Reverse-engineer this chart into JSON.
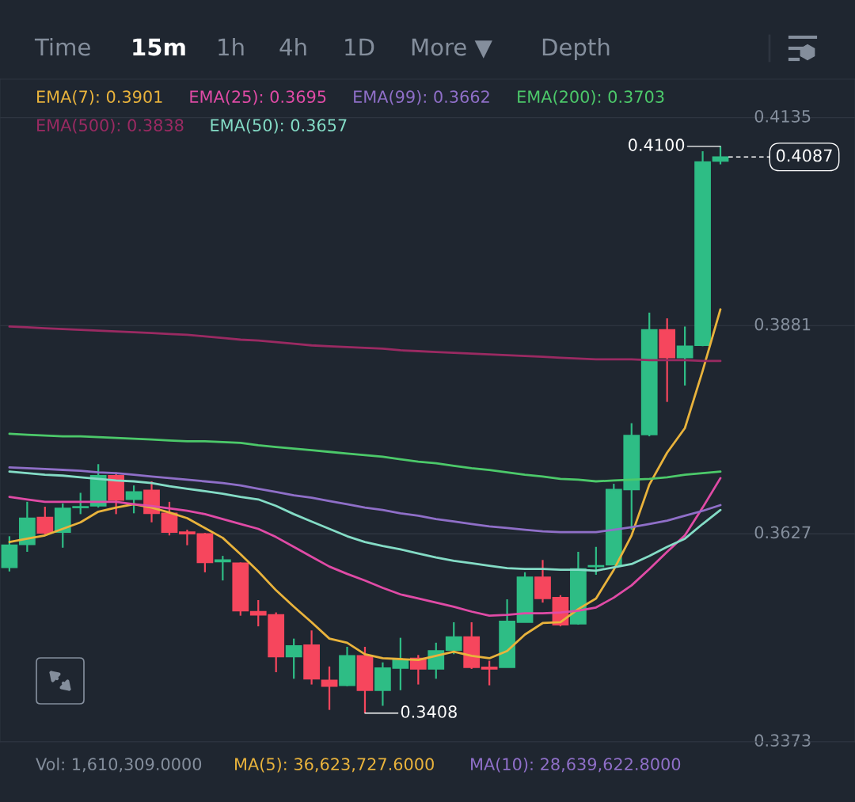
{
  "chart_data": [
    {
      "type": "candlestick",
      "categories": [
        null,
        null,
        null,
        null,
        null,
        null,
        null,
        null,
        null,
        null,
        null,
        null,
        null,
        null,
        null,
        null,
        null,
        null,
        null,
        null,
        null,
        null,
        null,
        null,
        null,
        null,
        null,
        null,
        null,
        null,
        null,
        null,
        null,
        null,
        null,
        null,
        null,
        null,
        null,
        null,
        null
      ],
      "ylim": [
        0.3373,
        0.4182
      ],
      "yticks": [
        0.3373,
        0.3627,
        0.3881,
        0.4135
      ],
      "tick_labels": "y",
      "grid": "y",
      "ohlc": [
        [
          0.3586,
          0.3624,
          0.3581,
          0.3613
        ],
        [
          0.3614,
          0.3666,
          0.3605,
          0.3646
        ],
        [
          0.3647,
          0.366,
          0.3626,
          0.3628
        ],
        [
          0.3629,
          0.3664,
          0.361,
          0.3658
        ],
        [
          0.3659,
          0.3677,
          0.3651,
          0.366
        ],
        [
          0.3661,
          0.3712,
          0.3659,
          0.3698
        ],
        [
          0.3698,
          0.3702,
          0.3651,
          0.3668
        ],
        [
          0.3669,
          0.3686,
          0.3652,
          0.3678
        ],
        [
          0.368,
          0.3691,
          0.3641,
          0.3652
        ],
        [
          0.3652,
          0.3666,
          0.3625,
          0.3629
        ],
        [
          0.3629,
          0.3632,
          0.3613,
          0.3627
        ],
        [
          0.3627,
          0.3628,
          0.358,
          0.3592
        ],
        [
          0.3593,
          0.36,
          0.357,
          0.3595
        ],
        [
          0.3591,
          0.3592,
          0.3527,
          0.3533
        ],
        [
          0.3532,
          0.3546,
          0.3514,
          0.3528
        ],
        [
          0.3528,
          0.3531,
          0.3458,
          0.3477
        ],
        [
          0.3477,
          0.3499,
          0.345,
          0.349
        ],
        [
          0.3491,
          0.3509,
          0.3443,
          0.345
        ],
        [
          0.3448,
          0.3465,
          0.3412,
          0.3441
        ],
        [
          0.3442,
          0.3489,
          0.3441,
          0.3478
        ],
        [
          0.3478,
          0.3489,
          0.3408,
          0.3436
        ],
        [
          0.3436,
          0.347,
          0.3417,
          0.3463
        ],
        [
          0.3463,
          0.35,
          0.3436,
          0.3473
        ],
        [
          0.3475,
          0.3479,
          0.3443,
          0.3462
        ],
        [
          0.3462,
          0.3494,
          0.345,
          0.3484
        ],
        [
          0.3485,
          0.3519,
          0.348,
          0.3501
        ],
        [
          0.3501,
          0.3519,
          0.3462,
          0.3464
        ],
        [
          0.3464,
          0.3472,
          0.3442,
          0.3462
        ],
        [
          0.3464,
          0.3547,
          0.3464,
          0.352
        ],
        [
          0.3519,
          0.358,
          0.3519,
          0.3574
        ],
        [
          0.3574,
          0.3595,
          0.3543,
          0.3548
        ],
        [
          0.3549,
          0.3552,
          0.3514,
          0.3516
        ],
        [
          0.3517,
          0.3605,
          0.3516,
          0.3584
        ],
        [
          0.3587,
          0.3611,
          0.3577,
          0.3588
        ],
        [
          0.3589,
          0.3688,
          0.3589,
          0.3681
        ],
        [
          0.3681,
          0.3762,
          0.3632,
          0.3747
        ],
        [
          0.3748,
          0.3897,
          0.3746,
          0.3876
        ],
        [
          0.3876,
          0.389,
          0.3788,
          0.3842
        ],
        [
          0.3842,
          0.388,
          0.3808,
          0.3856
        ],
        [
          0.3857,
          0.4094,
          0.3856,
          0.4081
        ],
        [
          0.4082,
          0.41,
          0.4078,
          0.4087
        ]
      ],
      "colors": [
        "#2ebd85",
        "#2ebd85",
        "#f6465d",
        "#2ebd85",
        "#2ebd85",
        "#2ebd85",
        "#f6465d",
        "#2ebd85",
        "#f6465d",
        "#f6465d",
        "#f6465d",
        "#f6465d",
        "#2ebd85",
        "#f6465d",
        "#f6465d",
        "#f6465d",
        "#2ebd85",
        "#f6465d",
        "#f6465d",
        "#2ebd85",
        "#f6465d",
        "#2ebd85",
        "#2ebd85",
        "#f6465d",
        "#2ebd85",
        "#2ebd85",
        "#f6465d",
        "#f6465d",
        "#2ebd85",
        "#2ebd85",
        "#f6465d",
        "#f6465d",
        "#2ebd85",
        "#2ebd85",
        "#2ebd85",
        "#2ebd85",
        "#2ebd85",
        "#f6465d",
        "#2ebd85",
        "#2ebd85",
        "#2ebd85"
      ],
      "ref_lines": [
        {
          "axis": "y",
          "value": 0.4087,
          "label": "0.4087",
          "line_style": "dashed",
          "color": "#ffffff"
        }
      ],
      "annotations": [
        "Time",
        "15m",
        "1h",
        "4h",
        "1D",
        "More ▼",
        "Depth",
        "Vol: 1,610,309.0000",
        "MA(5): 36,623,727.6000",
        "MA(10): 28,639,622.8000",
        "0.4100",
        "0.3408"
      ]
    },
    {
      "type": "line",
      "categories": [
        null,
        null,
        null,
        null,
        null,
        null,
        null,
        null,
        null,
        null,
        null,
        null,
        null,
        null,
        null,
        null,
        null,
        null,
        null,
        null,
        null,
        null,
        null,
        null,
        null,
        null,
        null,
        null,
        null,
        null,
        null,
        null,
        null,
        null,
        null,
        null,
        null,
        null,
        null,
        null,
        null
      ],
      "ylim": [
        0.3373,
        0.4182
      ],
      "tick_labels": false,
      "series": [
        {
          "name": "EMA(7): 0.3901",
          "color": "#e9b33c",
          "values": [
            0.3617,
            0.3621,
            0.3625,
            0.3633,
            0.3641,
            0.3654,
            0.3659,
            0.3663,
            0.3659,
            0.3653,
            0.3646,
            0.3634,
            0.3622,
            0.3602,
            0.3581,
            0.3558,
            0.3538,
            0.3519,
            0.3499,
            0.3494,
            0.348,
            0.3475,
            0.3474,
            0.3473,
            0.3478,
            0.3483,
            0.3478,
            0.3475,
            0.3484,
            0.3504,
            0.3518,
            0.3519,
            0.3535,
            0.3548,
            0.3583,
            0.3625,
            0.3687,
            0.3726,
            0.3756,
            0.3826,
            0.3901
          ]
        },
        {
          "name": "EMA(25): 0.3695",
          "color": "#e04ba6",
          "values": [
            0.3672,
            0.3669,
            0.3666,
            0.3666,
            0.3666,
            0.3666,
            0.3666,
            0.3663,
            0.3661,
            0.3658,
            0.3655,
            0.3651,
            0.3645,
            0.3639,
            0.3633,
            0.3623,
            0.3611,
            0.3599,
            0.3587,
            0.3578,
            0.357,
            0.3561,
            0.3553,
            0.3548,
            0.3543,
            0.3538,
            0.3532,
            0.3527,
            0.3528,
            0.353,
            0.353,
            0.3531,
            0.3533,
            0.3537,
            0.3549,
            0.3564,
            0.3584,
            0.3605,
            0.3625,
            0.3659,
            0.3695
          ]
        },
        {
          "name": "EMA(99): 0.3662",
          "color": "#8f6fc8",
          "values": [
            0.3708,
            0.3707,
            0.3706,
            0.3705,
            0.3704,
            0.3702,
            0.3701,
            0.3699,
            0.3697,
            0.3695,
            0.3693,
            0.3691,
            0.3689,
            0.3686,
            0.3682,
            0.3678,
            0.3674,
            0.3671,
            0.3667,
            0.3663,
            0.3659,
            0.3656,
            0.3652,
            0.3649,
            0.3645,
            0.3642,
            0.3639,
            0.3636,
            0.3634,
            0.3632,
            0.363,
            0.3629,
            0.3629,
            0.3629,
            0.3632,
            0.3635,
            0.3639,
            0.3643,
            0.3649,
            0.3655,
            0.3662
          ]
        },
        {
          "name": "EMA(200): 0.3703",
          "color": "#4cc96a",
          "values": [
            0.3749,
            0.3748,
            0.3747,
            0.3746,
            0.3746,
            0.3745,
            0.3744,
            0.3743,
            0.3742,
            0.3741,
            0.374,
            0.374,
            0.3739,
            0.3738,
            0.3735,
            0.3733,
            0.3731,
            0.3729,
            0.3727,
            0.3725,
            0.3723,
            0.3721,
            0.3718,
            0.3715,
            0.3713,
            0.371,
            0.3707,
            0.3705,
            0.3702,
            0.3699,
            0.3697,
            0.3694,
            0.3693,
            0.3691,
            0.3692,
            0.3693,
            0.3694,
            0.3696,
            0.3699,
            0.3701,
            0.3703
          ]
        },
        {
          "name": "EMA(500): 0.3838",
          "color": "#9a2a62",
          "values": [
            0.388,
            0.3879,
            0.3878,
            0.3877,
            0.3876,
            0.3875,
            0.3874,
            0.3873,
            0.3872,
            0.3871,
            0.387,
            0.3868,
            0.3866,
            0.3864,
            0.3863,
            0.3861,
            0.3859,
            0.3857,
            0.3856,
            0.3855,
            0.3854,
            0.3853,
            0.3851,
            0.385,
            0.3849,
            0.3848,
            0.3847,
            0.3846,
            0.3845,
            0.3844,
            0.3843,
            0.3842,
            0.3841,
            0.384,
            0.384,
            0.384,
            0.3839,
            0.3839,
            0.3839,
            0.3838,
            0.3838
          ]
        },
        {
          "name": "EMA(50): 0.3657",
          "color": "#84dcc6",
          "values": [
            0.3703,
            0.3701,
            0.3699,
            0.3698,
            0.3696,
            0.3694,
            0.3692,
            0.3691,
            0.3689,
            0.3685,
            0.3682,
            0.3679,
            0.3676,
            0.3672,
            0.3669,
            0.3661,
            0.3651,
            0.3642,
            0.3633,
            0.3624,
            0.3617,
            0.3612,
            0.3608,
            0.3603,
            0.3598,
            0.3594,
            0.3591,
            0.3588,
            0.3585,
            0.3584,
            0.3584,
            0.3583,
            0.3583,
            0.3582,
            0.3586,
            0.359,
            0.36,
            0.3611,
            0.3621,
            0.3639,
            0.3656
          ]
        }
      ]
    }
  ]
}
